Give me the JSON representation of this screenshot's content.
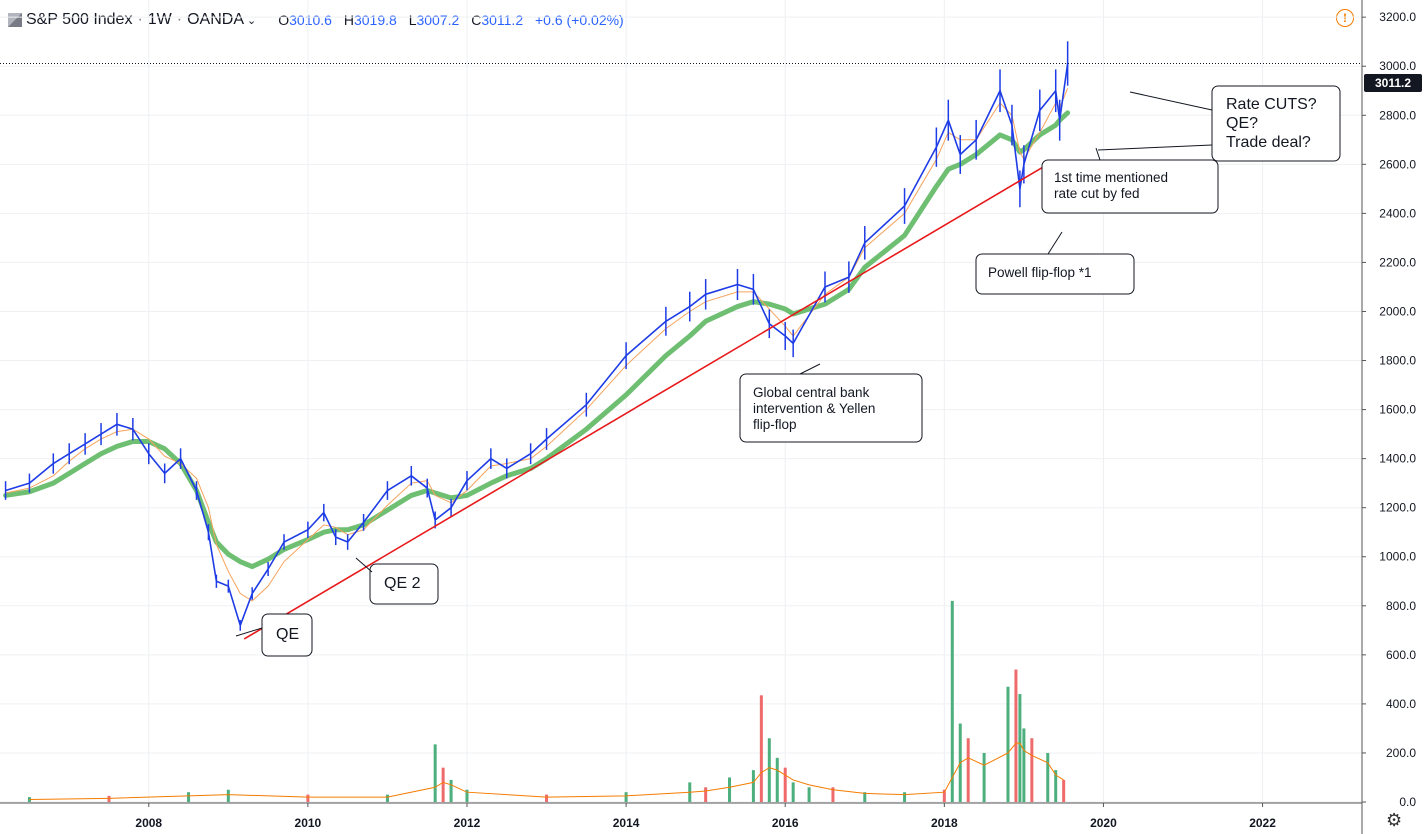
{
  "header": {
    "symbol": "S&P 500 Index",
    "interval": "1W",
    "source": "OANDA",
    "sep1": "·",
    "sep2": "·",
    "o_label": "O",
    "o_value": "3010.6",
    "h_label": "H",
    "h_value": "3019.8",
    "l_label": "L",
    "l_value": "3007.2",
    "c_label": "C",
    "c_value": "3011.2",
    "change": "+0.6 (+0.02%)"
  },
  "last_price_label": "3011.2",
  "colors": {
    "up": "#2962ff",
    "price_bars": "#1e3ce6",
    "sma_thin": "#f7a35c",
    "sma_thick": "#6fbf73",
    "trendline": "#e8191b",
    "vol_up": "#4caf7d",
    "vol_down": "#ef6b6b",
    "vol_ma": "#f57c00",
    "grid": "#eef0f3",
    "axis_text": "#131722"
  },
  "annotations": {
    "qe": "QE",
    "qe2": "QE 2",
    "global": "Global central bank\nintervention & Yellen\nflip-flop",
    "powell": "Powell flip-flop *1",
    "first_mention": "1st time mentioned\nrate cut by fed",
    "rate_cuts": "Rate CUTS?\nQE?\nTrade deal?"
  },
  "chart_data": {
    "type": "line",
    "title": "S&P 500 Index · 1W · OANDA",
    "xlabel": "",
    "ylabel": "",
    "price_axis": {
      "ticks": [
        "0.0",
        "200.0",
        "400.0",
        "600.0",
        "800.0",
        "1000.0",
        "1200.0",
        "1400.0",
        "1600.0",
        "1800.0",
        "2000.0",
        "2200.0",
        "2400.0",
        "2600.0",
        "2800.0",
        "3000.0",
        "3200.0"
      ],
      "tick_values": [
        0,
        200,
        400,
        600,
        800,
        1000,
        1200,
        1400,
        1600,
        1800,
        2000,
        2200,
        2400,
        2600,
        2800,
        3000,
        3200
      ],
      "ylim": [
        0,
        3270
      ]
    },
    "time_axis": {
      "ticks": [
        "2008",
        "2010",
        "2012",
        "2014",
        "2016",
        "2018",
        "2020",
        "2022"
      ],
      "tick_values": [
        2008,
        2010,
        2012,
        2014,
        2016,
        2018,
        2020,
        2022
      ],
      "xlim": [
        2006.13,
        2023.25
      ]
    },
    "x": [
      2006.2,
      2006.5,
      2006.8,
      2007.0,
      2007.2,
      2007.4,
      2007.6,
      2007.8,
      2008.0,
      2008.2,
      2008.4,
      2008.6,
      2008.75,
      2008.85,
      2009.0,
      2009.15,
      2009.3,
      2009.5,
      2009.7,
      2010.0,
      2010.2,
      2010.35,
      2010.5,
      2010.7,
      2011.0,
      2011.3,
      2011.5,
      2011.6,
      2011.8,
      2012.0,
      2012.3,
      2012.5,
      2012.8,
      2013.0,
      2013.5,
      2014.0,
      2014.5,
      2014.8,
      2015.0,
      2015.4,
      2015.6,
      2015.8,
      2016.0,
      2016.1,
      2016.5,
      2016.8,
      2017.0,
      2017.5,
      2017.9,
      2018.05,
      2018.2,
      2018.4,
      2018.7,
      2018.85,
      2018.95,
      2019.0,
      2019.2,
      2019.4,
      2019.45,
      2019.55
    ],
    "series": [
      {
        "name": "S&P 500 Index (weekly close)",
        "values": [
          1270,
          1300,
          1380,
          1420,
          1460,
          1500,
          1540,
          1520,
          1420,
          1340,
          1400,
          1270,
          1100,
          900,
          880,
          720,
          850,
          950,
          1060,
          1110,
          1180,
          1080,
          1060,
          1140,
          1270,
          1330,
          1280,
          1150,
          1200,
          1310,
          1400,
          1360,
          1420,
          1480,
          1620,
          1820,
          1960,
          2020,
          2070,
          2110,
          2090,
          1950,
          1900,
          1870,
          2100,
          2140,
          2280,
          2430,
          2670,
          2780,
          2640,
          2700,
          2900,
          2760,
          2500,
          2600,
          2820,
          2900,
          2780,
          3011.2
        ]
      },
      {
        "name": "SMA (short)",
        "values": [
          1260,
          1280,
          1330,
          1390,
          1440,
          1480,
          1510,
          1520,
          1480,
          1410,
          1380,
          1320,
          1200,
          1050,
          940,
          850,
          820,
          880,
          980,
          1070,
          1130,
          1120,
          1090,
          1110,
          1210,
          1300,
          1310,
          1250,
          1220,
          1270,
          1370,
          1380,
          1400,
          1450,
          1600,
          1780,
          1930,
          2000,
          2040,
          2080,
          2080,
          2010,
          1940,
          1900,
          2070,
          2140,
          2260,
          2400,
          2620,
          2730,
          2700,
          2700,
          2850,
          2800,
          2650,
          2620,
          2730,
          2850,
          2830,
          2910
        ]
      },
      {
        "name": "SMA (long)",
        "values": [
          1250,
          1265,
          1300,
          1340,
          1380,
          1420,
          1450,
          1470,
          1470,
          1440,
          1380,
          1270,
          1140,
          1060,
          1010,
          980,
          960,
          990,
          1030,
          1070,
          1100,
          1110,
          1110,
          1130,
          1190,
          1250,
          1270,
          1260,
          1240,
          1250,
          1300,
          1330,
          1360,
          1400,
          1520,
          1660,
          1820,
          1900,
          1960,
          2020,
          2040,
          2030,
          2010,
          1990,
          2030,
          2090,
          2180,
          2310,
          2510,
          2580,
          2600,
          2640,
          2720,
          2700,
          2650,
          2660,
          2720,
          2760,
          2780,
          2810
        ]
      }
    ],
    "volume": {
      "ylim": [
        0,
        3270
      ],
      "bars_x": [
        2006.5,
        2007.5,
        2008.5,
        2009.0,
        2010.0,
        2011.0,
        2011.6,
        2011.7,
        2011.8,
        2012.0,
        2013.0,
        2014.0,
        2014.8,
        2015.0,
        2015.3,
        2015.6,
        2015.7,
        2015.8,
        2015.9,
        2016.0,
        2016.1,
        2016.3,
        2016.6,
        2017.0,
        2017.5,
        2018.0,
        2018.1,
        2018.2,
        2018.3,
        2018.5,
        2018.8,
        2018.9,
        2018.95,
        2019.0,
        2019.1,
        2019.3,
        2019.4,
        2019.5
      ],
      "bars_v": [
        20,
        25,
        40,
        50,
        30,
        30,
        235,
        140,
        90,
        50,
        30,
        40,
        80,
        60,
        100,
        130,
        435,
        260,
        180,
        140,
        80,
        60,
        60,
        40,
        40,
        50,
        820,
        320,
        260,
        200,
        470,
        540,
        440,
        300,
        260,
        200,
        130,
        90
      ],
      "ma_values": [
        10,
        15,
        25,
        30,
        20,
        20,
        60,
        80,
        70,
        40,
        20,
        25,
        40,
        45,
        60,
        80,
        120,
        140,
        130,
        110,
        90,
        70,
        50,
        35,
        30,
        40,
        100,
        160,
        180,
        150,
        200,
        240,
        240,
        210,
        190,
        160,
        110,
        90
      ]
    },
    "trendline": {
      "x": [
        2009.2,
        2019.3
      ],
      "y": [
        665,
        2600
      ]
    }
  }
}
